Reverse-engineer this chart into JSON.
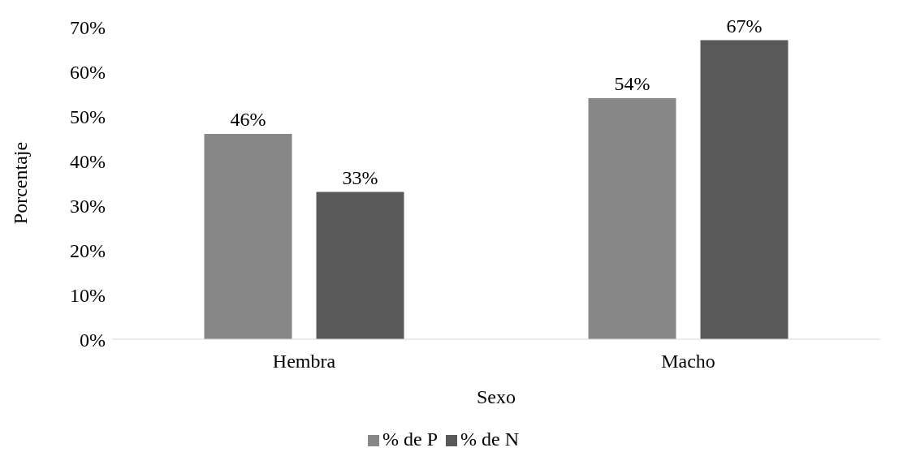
{
  "chart_data": {
    "type": "bar",
    "xlabel": "Sexo",
    "ylabel": "Porcentaje",
    "categories": [
      "Hembra",
      "Macho"
    ],
    "series": [
      {
        "name": "% de P",
        "color": "#878787",
        "values": [
          46,
          54
        ],
        "value_labels": [
          "46%",
          "54%"
        ]
      },
      {
        "name": "% de N",
        "color": "#595959",
        "values": [
          33,
          67
        ],
        "value_labels": [
          "33%",
          "67%"
        ]
      }
    ],
    "ylim": [
      0,
      70
    ],
    "yticks": [
      {
        "value": 0,
        "label": "0%"
      },
      {
        "value": 10,
        "label": "10%"
      },
      {
        "value": 20,
        "label": "20%"
      },
      {
        "value": 30,
        "label": "30%"
      },
      {
        "value": 40,
        "label": "40%"
      },
      {
        "value": 50,
        "label": "50%"
      },
      {
        "value": 60,
        "label": "60%"
      },
      {
        "value": 70,
        "label": "70%"
      }
    ],
    "grid": false,
    "legend": "bottom"
  }
}
